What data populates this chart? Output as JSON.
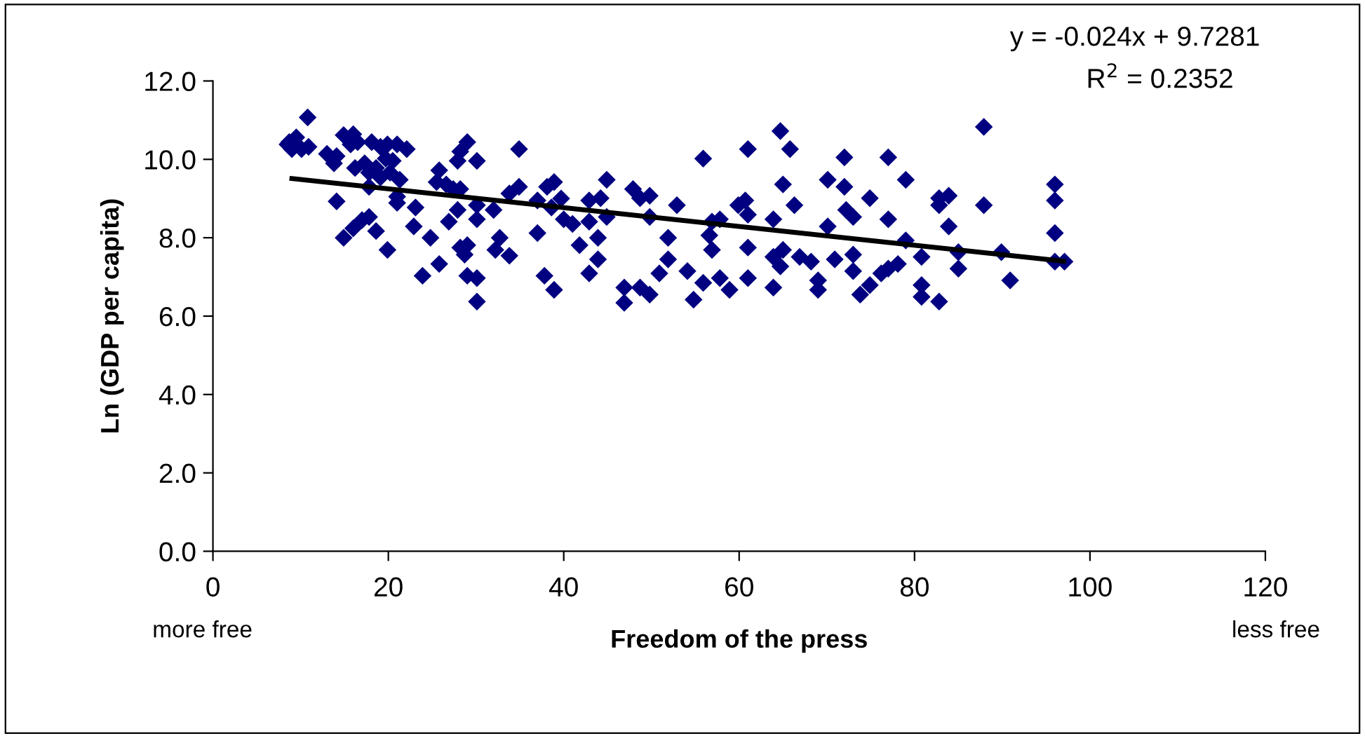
{
  "chart_data": {
    "type": "scatter",
    "xlabel": "Freedom of the press",
    "ylabel": "Ln (GDP per capita)",
    "xlim": [
      0,
      120
    ],
    "xticks": [
      0,
      20,
      40,
      60,
      80,
      100,
      120
    ],
    "ylim": [
      0,
      12
    ],
    "yticks": [
      {
        "value": 0,
        "label": "0.0"
      },
      {
        "value": 2,
        "label": "2.0"
      },
      {
        "value": 4,
        "label": "4.0"
      },
      {
        "value": 6,
        "label": "6.0"
      },
      {
        "value": 8,
        "label": "8.0"
      },
      {
        "value": 10,
        "label": "10.0"
      },
      {
        "value": 12,
        "label": "12.0"
      }
    ],
    "grid": false,
    "legend": false,
    "annotations": [
      "y = -0.024x + 9.7281",
      "R$^{2}$ = 0.2352",
      "more free",
      "less free"
    ],
    "series": [
      {
        "marker": "diamond",
        "color": "#000080",
        "x": [
          10.8,
          8.7,
          9.5,
          10.1,
          10.9,
          9.0,
          8.5,
          13.0,
          13.8,
          14.1,
          14.9,
          16.0,
          15.7,
          16.5,
          18.1,
          19.1,
          19.9,
          21.0,
          22.1,
          16.2,
          17.3,
          17.8,
          18.6,
          19.1,
          20.2,
          20.5,
          21.3,
          19.7,
          17.8,
          29.0,
          28.2,
          27.9,
          30.1,
          25.8,
          25.5,
          26.6,
          27.4,
          28.2,
          14.1,
          21.0,
          23.1,
          21.0,
          27.9,
          30.1,
          32.0,
          26.9,
          30.1,
          14.9,
          16.0,
          17.0,
          17.8,
          18.6,
          19.9,
          22.9,
          24.8,
          25.8,
          28.2,
          29.0,
          28.7,
          32.2,
          23.9,
          29.0,
          30.1,
          30.1,
          34.9,
          34.9,
          33.8,
          32.7,
          33.8,
          37.0,
          37.0,
          38.1,
          38.9,
          39.7,
          38.6,
          40.0,
          41.0,
          37.8,
          38.9,
          41.8,
          42.9,
          42.9,
          44.2,
          43.9,
          43.9,
          44.9,
          44.9,
          42.9,
          46.9,
          46.9,
          48.7,
          49.8,
          47.9,
          48.7,
          49.8,
          49.8,
          51.9,
          51.9,
          50.9,
          52.9,
          54.1,
          55.9,
          54.8,
          55.9,
          57.8,
          58.9,
          56.9,
          57.8,
          56.6,
          56.9,
          59.9,
          60.7,
          61.0,
          61.0,
          61.0,
          61.0,
          63.9,
          63.9,
          65.0,
          64.7,
          63.9,
          65.0,
          65.8,
          64.7,
          66.3,
          66.9,
          68.2,
          69.0,
          69.0,
          70.1,
          70.1,
          70.9,
          72.0,
          72.0,
          72.2,
          73.0,
          73.0,
          73.0,
          73.8,
          74.9,
          74.9,
          76.2,
          77.0,
          78.1,
          77.0,
          77.0,
          79.0,
          79.0,
          80.8,
          80.8,
          80.8,
          82.8,
          82.8,
          83.9,
          82.8,
          83.9,
          85.0,
          85.0,
          87.9,
          87.9,
          89.9,
          90.9,
          96.0,
          96.0,
          96.0,
          96.0,
          97.1
        ],
        "values": [
          11.07,
          10.44,
          10.56,
          10.26,
          10.32,
          10.26,
          10.38,
          10.14,
          9.9,
          10.08,
          10.62,
          10.64,
          10.38,
          10.44,
          10.44,
          10.32,
          10.38,
          10.38,
          10.26,
          9.78,
          9.9,
          9.66,
          9.78,
          9.54,
          9.66,
          9.96,
          9.48,
          10.02,
          9.3,
          10.44,
          10.2,
          9.96,
          9.96,
          9.72,
          9.42,
          9.36,
          9.24,
          9.24,
          8.93,
          8.89,
          8.77,
          9.05,
          8.71,
          8.83,
          8.71,
          8.41,
          8.47,
          8.0,
          8.24,
          8.45,
          8.53,
          8.17,
          7.69,
          8.29,
          8.0,
          7.33,
          7.75,
          7.81,
          7.57,
          7.69,
          7.03,
          7.03,
          6.97,
          6.37,
          10.26,
          9.3,
          9.13,
          8.0,
          7.54,
          8.12,
          8.95,
          9.3,
          9.42,
          9.0,
          8.77,
          8.47,
          8.35,
          7.03,
          6.67,
          7.81,
          8.41,
          8.95,
          9.01,
          8.0,
          7.45,
          9.48,
          8.53,
          7.09,
          6.73,
          6.34,
          6.73,
          6.55,
          9.24,
          9.01,
          9.07,
          8.53,
          8.0,
          7.45,
          7.09,
          8.83,
          7.15,
          10.02,
          6.42,
          6.85,
          6.97,
          6.67,
          8.41,
          8.47,
          8.06,
          7.69,
          8.83,
          8.95,
          8.59,
          7.75,
          6.97,
          10.26,
          8.47,
          7.51,
          7.69,
          7.27,
          6.73,
          9.36,
          10.26,
          10.72,
          8.83,
          7.51,
          7.39,
          6.91,
          6.67,
          9.48,
          8.29,
          7.45,
          10.05,
          9.3,
          8.71,
          8.53,
          7.57,
          7.15,
          6.55,
          6.79,
          9.01,
          7.09,
          7.21,
          7.33,
          10.05,
          8.47,
          9.48,
          7.93,
          7.51,
          6.79,
          6.49,
          6.37,
          9.01,
          9.07,
          8.83,
          8.29,
          7.63,
          7.21,
          10.83,
          8.83,
          7.63,
          6.91,
          9.36,
          8.95,
          8.12,
          7.39,
          7.39
        ]
      },
      {
        "type": "line",
        "marker": "none",
        "line_style": "solid",
        "color": "#000000",
        "x": [
          9,
          97
        ],
        "values": [
          9.51,
          7.4
        ]
      }
    ]
  }
}
